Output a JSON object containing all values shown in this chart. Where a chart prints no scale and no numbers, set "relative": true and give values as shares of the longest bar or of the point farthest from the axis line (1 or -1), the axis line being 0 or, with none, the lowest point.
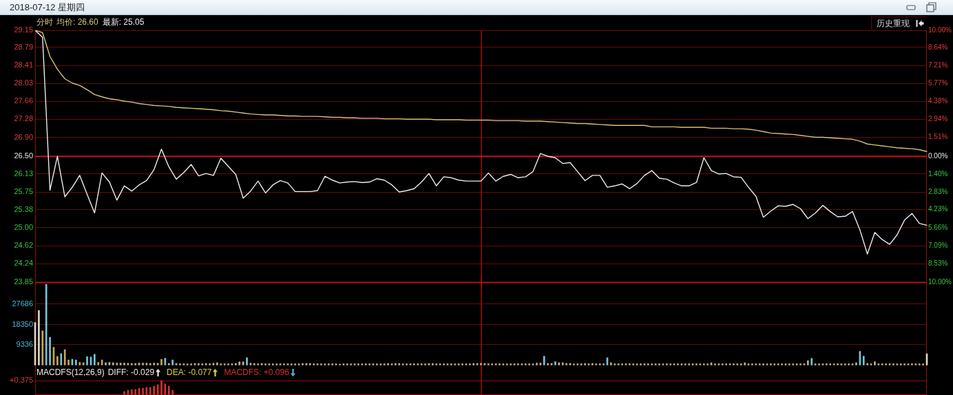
{
  "chart_data": [
    {
      "type": "line",
      "title": "2018-07-12 星期四",
      "legend_title": "分时",
      "legend": "top left",
      "categories": [
        null,
        null,
        null,
        null,
        null,
        null,
        null,
        null,
        null,
        null,
        null,
        null,
        null,
        null,
        null,
        null,
        null,
        null,
        null,
        null,
        null,
        null,
        null,
        null,
        null,
        null,
        null,
        null,
        null,
        null,
        null,
        null,
        null,
        null,
        null,
        null,
        null,
        null,
        null,
        null,
        null,
        null,
        null,
        null,
        null,
        null,
        null,
        null,
        null,
        null,
        null,
        null,
        null,
        null,
        null,
        null,
        null,
        null,
        null,
        null,
        null,
        null,
        null,
        null,
        null,
        null,
        null,
        null,
        null,
        null,
        null,
        null,
        null,
        null,
        null,
        null,
        null,
        null,
        null,
        null,
        null,
        null,
        null,
        null,
        null,
        null,
        null,
        null,
        null,
        null,
        null,
        null,
        null,
        null,
        null,
        null,
        null,
        null,
        null,
        null,
        null,
        null,
        null,
        null,
        null,
        null,
        null,
        null,
        null,
        null,
        null,
        null,
        null,
        null,
        null,
        null,
        null,
        null,
        null,
        null,
        null
      ],
      "series": [
        {
          "name": "均价: 26.60",
          "color": "#d4c27a",
          "values": [
            29.15,
            29.1,
            28.6,
            28.33,
            28.13,
            28.04,
            27.99,
            27.9,
            27.8,
            27.75,
            27.71,
            27.69,
            27.66,
            27.64,
            27.61,
            27.59,
            27.57,
            27.56,
            27.55,
            27.53,
            27.52,
            27.51,
            27.5,
            27.49,
            27.48,
            27.46,
            27.45,
            27.43,
            27.41,
            27.39,
            27.38,
            27.37,
            27.37,
            27.36,
            27.35,
            27.35,
            27.34,
            27.34,
            27.34,
            27.33,
            27.32,
            27.32,
            27.31,
            27.31,
            27.3,
            27.3,
            27.3,
            27.29,
            27.29,
            27.29,
            27.28,
            27.28,
            27.28,
            27.28,
            27.27,
            27.27,
            27.27,
            27.27,
            27.26,
            27.26,
            27.26,
            27.26,
            27.25,
            27.25,
            27.25,
            27.25,
            27.24,
            27.24,
            27.24,
            27.23,
            27.22,
            27.21,
            27.2,
            27.19,
            27.19,
            27.18,
            27.17,
            27.16,
            27.15,
            27.15,
            27.15,
            27.15,
            27.15,
            27.12,
            27.12,
            27.12,
            27.12,
            27.11,
            27.11,
            27.11,
            27.11,
            27.09,
            27.09,
            27.09,
            27.08,
            27.08,
            27.07,
            27.05,
            27.02,
            26.99,
            26.98,
            26.97,
            26.96,
            26.94,
            26.92,
            26.9,
            26.9,
            26.89,
            26.88,
            26.87,
            26.86,
            26.82,
            26.76,
            26.74,
            26.72,
            26.7,
            26.68,
            26.67,
            26.66,
            26.64,
            26.6
          ]
        },
        {
          "name": "最新: 25.05",
          "color": "#ececec",
          "values": [
            29.15,
            29.0,
            25.79,
            26.5,
            25.65,
            25.85,
            26.1,
            25.7,
            25.31,
            26.15,
            25.96,
            25.58,
            25.88,
            25.77,
            25.9,
            25.99,
            26.22,
            26.65,
            26.28,
            26.02,
            26.16,
            26.33,
            26.09,
            26.14,
            26.1,
            26.46,
            26.29,
            26.12,
            25.62,
            25.77,
            25.98,
            25.73,
            25.9,
            25.99,
            25.94,
            25.76,
            25.76,
            25.76,
            25.78,
            26.08,
            26.0,
            25.94,
            25.96,
            25.97,
            25.95,
            25.96,
            26.03,
            26.0,
            25.9,
            25.75,
            25.78,
            25.82,
            25.96,
            26.14,
            25.88,
            26.07,
            26.05,
            26.0,
            25.98,
            25.98,
            25.98,
            26.15,
            25.98,
            26.08,
            26.12,
            26.05,
            26.07,
            26.18,
            26.56,
            26.5,
            26.47,
            26.35,
            26.37,
            26.18,
            25.99,
            26.1,
            26.1,
            25.85,
            25.88,
            25.92,
            25.82,
            25.93,
            26.1,
            26.2,
            26.04,
            26.02,
            25.94,
            25.88,
            25.88,
            25.95,
            26.47,
            26.2,
            26.13,
            26.14,
            26.07,
            26.06,
            25.85,
            25.66,
            25.22,
            25.35,
            25.46,
            25.45,
            25.49,
            25.4,
            25.19,
            25.31,
            25.47,
            25.34,
            25.23,
            25.24,
            25.34,
            24.95,
            24.45,
            24.9,
            24.75,
            24.65,
            24.85,
            25.16,
            25.3,
            25.09,
            25.05
          ]
        }
      ],
      "ylim": [
        23.85,
        29.15
      ],
      "yticks": [
        23.85,
        24.24,
        24.62,
        {
          "value": 25,
          "label": "25.00"
        },
        25.38,
        25.75,
        26.13,
        {
          "value": 26.5,
          "label": "26.50"
        },
        {
          "value": 26.9,
          "label": "26.90"
        },
        27.28,
        27.66,
        28.03,
        28.41,
        28.79,
        29.15
      ],
      "y2lim": [
        -10,
        10
      ],
      "y2ticks": [
        {
          "value": -10,
          "label": "10.00%"
        },
        {
          "value": -8.53,
          "label": "8.53%"
        },
        {
          "value": -7.09,
          "label": "7.09%"
        },
        {
          "value": -5.66,
          "label": "5.66%"
        },
        {
          "value": -4.23,
          "label": "4.23%"
        },
        {
          "value": -2.83,
          "label": "2.83%"
        },
        {
          "value": -1.4,
          "label": "1.40%"
        },
        {
          "value": 0,
          "label": "0.00%"
        },
        {
          "value": 1.51,
          "label": "1.51%"
        },
        {
          "value": 2.94,
          "label": "2.94%"
        },
        {
          "value": 4.38,
          "label": "4.38%"
        },
        {
          "value": 5.77,
          "label": "5.77%"
        },
        {
          "value": 7.21,
          "label": "7.21%"
        },
        {
          "value": 8.64,
          "label": "8.64%"
        },
        {
          "value": 10,
          "label": "10.00%"
        }
      ],
      "grid": "y",
      "ref_lines": [
        {
          "axis": "y",
          "value": 26.5,
          "color": "#c81414"
        }
      ],
      "annotations": [
        "历史重现"
      ]
    },
    {
      "type": "bar",
      "categories": [
        null,
        null,
        null,
        null,
        null,
        null,
        null,
        null,
        null,
        null,
        null,
        null,
        null,
        null,
        null,
        null,
        null,
        null,
        null,
        null,
        null,
        null,
        null,
        null,
        null,
        null,
        null,
        null,
        null,
        null,
        null,
        null,
        null,
        null,
        null,
        null,
        null,
        null,
        null,
        null,
        null,
        null,
        null,
        null,
        null,
        null,
        null,
        null,
        null,
        null,
        null,
        null,
        null,
        null,
        null,
        null,
        null,
        null,
        null,
        null,
        null,
        null,
        null,
        null,
        null,
        null,
        null,
        null,
        null,
        null,
        null,
        null,
        null,
        null,
        null,
        null,
        null,
        null,
        null,
        null,
        null,
        null,
        null,
        null,
        null,
        null,
        null,
        null,
        null,
        null,
        null,
        null,
        null,
        null,
        null,
        null,
        null,
        null,
        null,
        null,
        null,
        null,
        null,
        null,
        null,
        null,
        null,
        null,
        null,
        null,
        null,
        null,
        null,
        null,
        null,
        null,
        null,
        null,
        null,
        null,
        null,
        null,
        null,
        null,
        null,
        null,
        null,
        null,
        null,
        null,
        null,
        null,
        null,
        null,
        null,
        null,
        null,
        null,
        null,
        null,
        null,
        null,
        null,
        null,
        null,
        null,
        null,
        null,
        null,
        null,
        null,
        null,
        null,
        null,
        null,
        null,
        null,
        null,
        null,
        null,
        null,
        null,
        null,
        null,
        null,
        null,
        null,
        null,
        null,
        null,
        null,
        null,
        null,
        null,
        null,
        null,
        null,
        null,
        null,
        null,
        null,
        null,
        null,
        null,
        null,
        null,
        null,
        null,
        null,
        null,
        null,
        null,
        null,
        null,
        null,
        null,
        null,
        null,
        null,
        null,
        null,
        null,
        null,
        null,
        null,
        null,
        null,
        null,
        null,
        null,
        null,
        null,
        null,
        null,
        null,
        null,
        null,
        null,
        null,
        null,
        null,
        null,
        null,
        null,
        null,
        null,
        null,
        null,
        null,
        null,
        null,
        null,
        null,
        null,
        null,
        null,
        null,
        null,
        null,
        null,
        null
      ],
      "values": [
        19300,
        24800,
        15500,
        36700,
        12600,
        8100,
        3900,
        5200,
        7000,
        2300,
        2600,
        2300,
        1200,
        1000,
        3800,
        3600,
        4900,
        1200,
        2300,
        1000,
        1200,
        1000,
        900,
        900,
        900,
        800,
        700,
        700,
        900,
        900,
        800,
        700,
        900,
        800,
        2600,
        3100,
        700,
        2300,
        700,
        600,
        600,
        500,
        600,
        700,
        700,
        600,
        700,
        600,
        800,
        1000,
        600,
        600,
        600,
        600,
        700,
        1400,
        1400,
        3300,
        800,
        700,
        600,
        700,
        600,
        600,
        600,
        600,
        600,
        600,
        600,
        600,
        600,
        600,
        700,
        700,
        700,
        600,
        600,
        600,
        600,
        600,
        600,
        600,
        400,
        600,
        600,
        600,
        600,
        600,
        600,
        600,
        600,
        600,
        600,
        600,
        600,
        700,
        600,
        700,
        700,
        600,
        600,
        600,
        600,
        600,
        600,
        600,
        700,
        700,
        600,
        600,
        600,
        600,
        600,
        600,
        600,
        600,
        600,
        600,
        700,
        700,
        800,
        700,
        600,
        600,
        600,
        600,
        600,
        600,
        600,
        600,
        600,
        600,
        600,
        600,
        600,
        900,
        900,
        4000,
        700,
        700,
        1500,
        1000,
        1000,
        700,
        700,
        500,
        600,
        600,
        700,
        600,
        700,
        600,
        600,
        600,
        3300,
        1000,
        600,
        600,
        600,
        600,
        600,
        600,
        600,
        600,
        600,
        600,
        600,
        600,
        600,
        600,
        600,
        600,
        600,
        600,
        600,
        600,
        600,
        600,
        600,
        600,
        600,
        600,
        1000,
        600,
        600,
        600,
        600,
        600,
        600,
        600,
        600,
        1000,
        600,
        600,
        600,
        600,
        600,
        600,
        600,
        600,
        600,
        600,
        600,
        600,
        600,
        600,
        600,
        600,
        2000,
        3000,
        600,
        600,
        600,
        600,
        600,
        600,
        600,
        600,
        600,
        600,
        600,
        1000,
        6200,
        4000,
        700,
        600,
        1500,
        600,
        600,
        600,
        600,
        600,
        600,
        600,
        600,
        600,
        600,
        600,
        600,
        600,
        5100
      ],
      "colors": [
        "#dcd4c4",
        "#dcd4c4",
        "#c8a850",
        "#78c4dc",
        "#78c4dc",
        "#c8a850",
        "#c8a850",
        "#78c4dc",
        "#c8a850",
        "#c8a850",
        "#78c4dc",
        "#78c4dc",
        "#c8a850",
        "#c8a850",
        "#78c4dc",
        "#78c4dc",
        "#78c4dc",
        "#c8a850",
        "#c8a850",
        "#78c4dc",
        "#c8b078",
        "#c8b078",
        "#c8b078",
        "#c8b078",
        "#c8b078",
        "#c8b078",
        "#c8b078",
        "#c8b078",
        "#c8b078",
        "#c8b078",
        "#c8b078",
        "#c8b078",
        "#c8b078",
        "#c8b078",
        "#c8a850",
        "#78c4dc",
        "#c8b078",
        "#78c4dc",
        "#c8b078",
        "#c8b078",
        "#c8b078",
        "#c8b078",
        "#c8b078",
        "#c8b078",
        "#c8b078",
        "#c8b078",
        "#c8b078",
        "#c8b078",
        "#c8b078",
        "#c8b078",
        "#c8b078",
        "#c8b078",
        "#c8b078",
        "#c8b078",
        "#c8b078",
        "#c8b078",
        "#c8b078",
        "#78c4dc",
        "#c8b078",
        "#c8b078",
        "#c8b078",
        "#c8b078",
        "#c8b078",
        "#c8b078",
        "#c8b078",
        "#c8b078",
        "#c8b078",
        "#c8b078",
        "#c8b078",
        "#c8b078",
        "#c8b078",
        "#c8b078",
        "#c8b078",
        "#c8b078",
        "#c8b078",
        "#c8b078",
        "#c8b078",
        "#c8b078",
        "#c8b078",
        "#c8b078",
        "#c8b078",
        "#c8b078",
        "#c8b078",
        "#c8b078",
        "#c8b078",
        "#c8b078",
        "#c8b078",
        "#c8b078",
        "#c8b078",
        "#c8b078",
        "#c8b078",
        "#c8b078",
        "#c8b078",
        "#c8b078",
        "#c8b078",
        "#c8b078",
        "#c8b078",
        "#c8b078",
        "#c8b078",
        "#c8b078",
        "#c8b078",
        "#c8b078",
        "#c8b078",
        "#c8b078",
        "#c8b078",
        "#c8b078",
        "#c8b078",
        "#c8b078",
        "#c8b078",
        "#c8b078",
        "#c8b078",
        "#c8b078",
        "#c8b078",
        "#c8b078",
        "#c8b078",
        "#c8b078",
        "#c8b078",
        "#c8b078",
        "#c8b078",
        "#c8b078",
        "#c8b078",
        "#c8b078",
        "#c8b078",
        "#c8b078",
        "#c8b078",
        "#c8b078",
        "#c8b078",
        "#c8b078",
        "#c8b078",
        "#c8b078",
        "#c8b078",
        "#c8b078",
        "#c8b078",
        "#c8b078",
        "#c8b078",
        "#c8b078",
        "#c8b078",
        "#78c4dc",
        "#c8b078",
        "#c8b078",
        "#78c4dc",
        "#c8b078",
        "#c8b078",
        "#c8b078",
        "#c8b078",
        "#c8b078",
        "#c8b078",
        "#c8b078",
        "#c8b078",
        "#c8b078",
        "#c8b078",
        "#c8b078",
        "#c8b078",
        "#c8b078",
        "#78c4dc",
        "#c8b078",
        "#c8b078",
        "#c8b078",
        "#c8b078",
        "#c8b078",
        "#c8b078",
        "#c8b078",
        "#c8b078",
        "#c8b078",
        "#c8b078",
        "#c8b078",
        "#c8b078",
        "#c8b078",
        "#c8b078",
        "#c8b078",
        "#c8b078",
        "#c8b078",
        "#c8b078",
        "#c8b078",
        "#c8b078",
        "#c8b078",
        "#c8b078",
        "#c8b078",
        "#c8b078",
        "#c8b078",
        "#c8b078",
        "#c8b078",
        "#c8b078",
        "#c8b078",
        "#c8b078",
        "#c8b078",
        "#c8b078",
        "#c8b078",
        "#c8b078",
        "#c8b078",
        "#c8b078",
        "#c8b078",
        "#c8b078",
        "#c8b078",
        "#c8b078",
        "#c8b078",
        "#c8b078",
        "#c8b078",
        "#c8b078",
        "#c8b078",
        "#c8b078",
        "#c8b078",
        "#c8b078",
        "#c8b078",
        "#c8b078",
        "#c8b078",
        "#c8b078",
        "#c8b078",
        "#c8b078",
        "#78c4dc",
        "#c8b078",
        "#c8b078",
        "#c8b078",
        "#c8b078",
        "#c8b078",
        "#c8b078",
        "#c8b078",
        "#c8b078",
        "#c8b078",
        "#c8b078",
        "#c8b078",
        "#c8b078",
        "#78c4dc",
        "#78c4dc",
        "#c8b078",
        "#c8b078",
        "#c8b078",
        "#c8b078",
        "#c8b078",
        "#c8b078",
        "#c8b078",
        "#c8b078",
        "#c8b078",
        "#c8b078",
        "#c8b078",
        "#c8b078",
        "#c8b078",
        "#c8b078",
        "#c8b078",
        "#c8b078",
        "#dcd4c4"
      ],
      "ylim": [
        0,
        37000
      ],
      "yticks": [
        9336,
        18350,
        27686
      ],
      "grid": "y"
    },
    {
      "type": "bar",
      "relative": true,
      "legend_title": "MACDFS(12,26,9)",
      "legend": "top left",
      "categories": [
        null,
        null,
        null,
        null,
        null,
        null,
        null,
        null,
        null,
        null,
        null,
        null,
        null,
        null,
        null,
        null,
        null,
        null,
        null,
        null,
        null,
        null,
        null,
        null,
        null,
        null,
        null,
        null,
        null,
        null,
        null,
        null,
        null,
        null,
        null,
        null,
        null,
        null,
        null,
        null,
        null,
        null,
        null,
        null,
        null,
        null,
        null,
        null,
        null,
        null,
        null,
        null,
        null,
        null,
        null,
        null,
        null,
        null,
        null,
        null,
        null,
        null,
        null,
        null,
        null,
        null,
        null,
        null,
        null,
        null,
        null,
        null,
        null,
        null,
        null,
        null,
        null,
        null,
        null,
        null,
        null,
        null,
        null,
        null,
        null,
        null,
        null,
        null,
        null,
        null,
        null,
        null,
        null,
        null,
        null,
        null,
        null,
        null,
        null,
        null,
        null,
        null,
        null,
        null,
        null,
        null,
        null,
        null,
        null,
        null,
        null,
        null,
        null,
        null,
        null,
        null,
        null,
        null,
        null,
        null,
        null,
        null,
        null,
        null,
        null,
        null,
        null,
        null,
        null,
        null,
        null,
        null,
        null,
        null,
        null,
        null,
        null,
        null,
        null,
        null,
        null,
        null,
        null,
        null,
        null,
        null,
        null,
        null,
        null,
        null,
        null,
        null,
        null,
        null,
        null,
        null,
        null,
        null,
        null,
        null,
        null,
        null,
        null,
        null,
        null,
        null,
        null,
        null,
        null,
        null,
        null,
        null,
        null,
        null,
        null,
        null,
        null,
        null,
        null,
        null,
        null,
        null,
        null,
        null,
        null,
        null,
        null,
        null,
        null,
        null,
        null,
        null,
        null,
        null,
        null,
        null,
        null,
        null,
        null,
        null,
        null,
        null,
        null,
        null,
        null,
        null,
        null,
        null,
        null,
        null,
        null,
        null,
        null,
        null,
        null,
        null,
        null,
        null,
        null,
        null,
        null,
        null,
        null,
        null,
        null,
        null,
        null,
        null,
        null,
        null,
        null,
        null,
        null,
        null,
        null,
        null,
        null,
        null,
        null,
        null,
        null
      ],
      "series": [
        {
          "name": "DIFF: -0.029",
          "color": "#e8e8e8",
          "type": "line",
          "values": [
            null,
            null,
            null,
            null,
            null,
            null,
            null,
            null,
            null,
            null,
            null,
            null,
            null,
            null,
            null,
            null,
            null,
            null,
            null,
            null,
            null,
            null,
            null,
            null,
            null,
            null,
            null,
            null,
            null,
            null,
            null,
            null,
            null,
            null,
            null,
            null,
            null,
            null,
            null,
            null,
            null,
            null,
            null,
            null,
            null,
            null,
            null,
            null,
            null,
            null,
            null,
            null,
            null,
            null,
            null,
            null,
            null,
            null,
            null,
            null,
            null,
            null,
            null,
            null,
            null,
            null,
            null,
            null,
            null,
            null,
            null,
            null,
            null,
            null,
            null,
            null,
            null,
            null,
            null,
            null,
            null,
            null,
            null,
            null,
            null,
            null,
            null,
            null,
            null,
            null,
            null,
            null,
            null,
            null,
            null,
            null,
            null,
            null,
            null,
            null,
            null,
            null,
            null,
            null,
            null,
            null,
            null,
            null,
            null,
            null,
            null,
            null,
            null,
            null,
            null,
            null,
            null,
            null,
            null,
            null,
            null,
            null,
            null,
            null,
            null,
            null,
            null,
            null,
            null,
            null,
            null,
            null,
            null,
            null,
            null,
            null,
            null,
            null,
            null,
            null,
            null,
            null,
            null,
            null,
            null,
            null,
            null,
            null,
            null,
            null,
            null,
            null,
            null,
            null,
            null,
            null,
            null,
            null,
            null,
            null,
            null,
            null,
            null,
            null,
            null,
            null,
            null,
            null,
            null,
            null,
            null,
            null,
            null,
            null,
            null,
            null,
            null,
            null,
            null,
            null,
            null,
            null,
            null,
            null,
            null,
            null,
            null,
            null,
            null,
            null,
            null,
            null,
            null,
            null,
            null,
            null,
            null,
            null,
            null,
            null,
            null,
            null,
            null,
            null,
            null,
            null,
            null,
            null,
            null,
            null,
            null,
            null,
            null,
            null,
            null,
            null,
            null,
            null,
            null,
            null,
            null,
            null,
            null,
            null,
            null,
            null,
            null,
            null,
            null,
            null,
            null,
            null,
            null,
            null,
            null,
            null,
            null,
            null,
            null,
            null,
            null
          ]
        },
        {
          "name": "DEA: -0.077",
          "color": "#d8d040",
          "type": "line",
          "values": [
            null,
            null,
            null,
            null,
            null,
            null,
            null,
            null,
            null,
            null,
            null,
            null,
            null,
            null,
            null,
            null,
            null,
            null,
            null,
            null,
            null,
            null,
            null,
            null,
            null,
            null,
            null,
            null,
            null,
            null,
            null,
            null,
            null,
            null,
            null,
            null,
            null,
            null,
            null,
            null,
            null,
            null,
            null,
            null,
            null,
            null,
            null,
            null,
            null,
            null,
            null,
            null,
            null,
            null,
            null,
            null,
            null,
            null,
            null,
            null,
            null,
            null,
            null,
            null,
            null,
            null,
            null,
            null,
            null,
            null,
            null,
            null,
            null,
            null,
            null,
            null,
            null,
            null,
            null,
            null,
            null,
            null,
            null,
            null,
            null,
            null,
            null,
            null,
            null,
            null,
            null,
            null,
            null,
            null,
            null,
            null,
            null,
            null,
            null,
            null,
            null,
            null,
            null,
            null,
            null,
            null,
            null,
            null,
            null,
            null,
            null,
            null,
            null,
            null,
            null,
            null,
            null,
            null,
            null,
            null,
            null,
            null,
            null,
            null,
            null,
            null,
            null,
            null,
            null,
            null,
            null,
            null,
            null,
            null,
            null,
            null,
            null,
            null,
            null,
            null,
            null,
            null,
            null,
            null,
            null,
            null,
            null,
            null,
            null,
            null,
            null,
            null,
            null,
            null,
            null,
            null,
            null,
            null,
            null,
            null,
            null,
            null,
            null,
            null,
            null,
            null,
            null,
            null,
            null,
            null,
            null,
            null,
            null,
            null,
            null,
            null,
            null,
            null,
            null,
            null,
            null,
            null,
            null,
            null,
            null,
            null,
            null,
            null,
            null,
            null,
            null,
            null,
            null,
            null,
            null,
            null,
            null,
            null,
            null,
            null,
            null,
            null,
            null,
            null,
            null,
            null,
            null,
            null,
            null,
            null,
            null,
            null,
            null,
            null,
            null,
            null,
            null,
            null,
            null,
            null,
            null,
            null,
            null,
            null,
            null,
            null,
            null,
            null,
            null,
            null,
            null,
            null,
            null,
            null,
            null,
            null,
            null,
            null,
            null,
            null,
            null
          ]
        },
        {
          "name": "MACDFS: +0.096",
          "color": "#d83030",
          "values": [
            null,
            null,
            null,
            null,
            null,
            null,
            null,
            null,
            null,
            null,
            null,
            null,
            null,
            null,
            null,
            null,
            null,
            null,
            null,
            null,
            null,
            null,
            null,
            null,
            0.2,
            0.3,
            0.35,
            0.35,
            0.45,
            0.45,
            0.5,
            0.5,
            0.6,
            0.7,
            1,
            0.75,
            0.6,
            0.3,
            null,
            null,
            null,
            null,
            null,
            null,
            null,
            null,
            null,
            null,
            null,
            null,
            null,
            null,
            null,
            null,
            null,
            null,
            null,
            null,
            null,
            null,
            null,
            null,
            null,
            null,
            null,
            null,
            null,
            null,
            null,
            null,
            null,
            null,
            null,
            null,
            null,
            null,
            null,
            null,
            null,
            null,
            null,
            null,
            null,
            null,
            null,
            null,
            null,
            null,
            null,
            null,
            null,
            null,
            null,
            null,
            null,
            null,
            null,
            null,
            null,
            null,
            null,
            null,
            null,
            null,
            null,
            null,
            null,
            null,
            null,
            null,
            null,
            null,
            null,
            null,
            null,
            null,
            null,
            null,
            null,
            null,
            null,
            null,
            null,
            null,
            null,
            null,
            null,
            null,
            null,
            null,
            null,
            null,
            null,
            null,
            null,
            null,
            null,
            null,
            null,
            null,
            null,
            null,
            null,
            null,
            null,
            null,
            null,
            null,
            null,
            null,
            null,
            null,
            null,
            null,
            null,
            null,
            null,
            null,
            null,
            null,
            null,
            null,
            null,
            null,
            null,
            null,
            null,
            null,
            null,
            null,
            null,
            null,
            null,
            null,
            null,
            null,
            null,
            null,
            null,
            null,
            null,
            null,
            null,
            null,
            null,
            null,
            null,
            null,
            null,
            null,
            null,
            null,
            null,
            null,
            null,
            null,
            null,
            null,
            null,
            null,
            null,
            null,
            null,
            null,
            null,
            null,
            null,
            null,
            null,
            null,
            null,
            null,
            null,
            null,
            null,
            null,
            null,
            null,
            null,
            null,
            null,
            null,
            null,
            null,
            null,
            null,
            null,
            null,
            null,
            null,
            null,
            null,
            null,
            null,
            null,
            null,
            null,
            null,
            null,
            null,
            null
          ]
        }
      ],
      "annotations": [
        "+0.375"
      ]
    }
  ]
}
